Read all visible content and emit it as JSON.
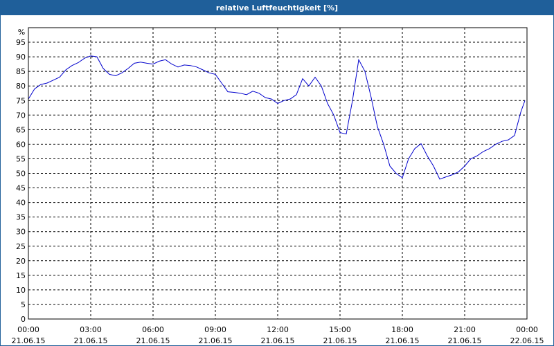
{
  "title": "relative Luftfeuchtigkeit [%]",
  "colors": {
    "title_bar": "#1f5f9a",
    "title_text": "#ffffff",
    "line": "#0000cc",
    "grid": "#000000",
    "background": "#ffffff"
  },
  "chart_data": {
    "type": "line",
    "title": "relative Luftfeuchtigkeit [%]",
    "ylabel": "%",
    "xlabel": "",
    "ylim": [
      0,
      100
    ],
    "xlim": [
      0,
      24
    ],
    "grid": true,
    "y_ticks": [
      0,
      5,
      10,
      15,
      20,
      25,
      30,
      35,
      40,
      45,
      50,
      55,
      60,
      65,
      70,
      75,
      80,
      85,
      90,
      95
    ],
    "x_ticks": [
      {
        "time": "00:00",
        "date": "21.06.15",
        "hour": 0
      },
      {
        "time": "03:00",
        "date": "21.06.15",
        "hour": 3
      },
      {
        "time": "06:00",
        "date": "21.06.15",
        "hour": 6
      },
      {
        "time": "09:00",
        "date": "21.06.15",
        "hour": 9
      },
      {
        "time": "12:00",
        "date": "21.06.15",
        "hour": 12
      },
      {
        "time": "15:00",
        "date": "21.06.15",
        "hour": 15
      },
      {
        "time": "18:00",
        "date": "21.06.15",
        "hour": 18
      },
      {
        "time": "21:00",
        "date": "21.06.15",
        "hour": 21
      },
      {
        "time": "00:00",
        "date": "22.06.15",
        "hour": 24
      }
    ],
    "series": [
      {
        "x": [
          0,
          0.3,
          0.6,
          0.9,
          1.2,
          1.5,
          1.8,
          2.1,
          2.4,
          2.7,
          3.0,
          3.3,
          3.6,
          3.9,
          4.2,
          4.5,
          4.8,
          5.1,
          5.4,
          5.7,
          6.0,
          6.3,
          6.6,
          6.9,
          7.2,
          7.5,
          7.8,
          8.1,
          8.4,
          8.7,
          9.0,
          9.3,
          9.6,
          9.9,
          10.2,
          10.5,
          10.8,
          11.1,
          11.4,
          11.7,
          12.0,
          12.3,
          12.6,
          12.9,
          13.2,
          13.5,
          13.8,
          14.1,
          14.4,
          14.7,
          15.0,
          15.3,
          15.6,
          15.9,
          16.2,
          16.5,
          16.8,
          17.1,
          17.4,
          17.7,
          18.0,
          18.3,
          18.6,
          18.9,
          19.2,
          19.5,
          19.8,
          20.1,
          20.4,
          20.7,
          21.0,
          21.3,
          21.6,
          21.9,
          22.2,
          22.5,
          22.8,
          23.1,
          23.4,
          23.7,
          23.9
        ],
        "values": [
          75.5,
          79,
          80.5,
          81,
          82,
          83,
          85.5,
          87,
          88,
          89.5,
          90.3,
          90,
          86,
          84,
          83.5,
          84.5,
          86,
          87.8,
          88.2,
          87.8,
          87.5,
          88.5,
          89,
          87.5,
          86.5,
          87.2,
          87,
          86.5,
          85.5,
          84.5,
          84,
          81,
          78,
          77.8,
          77.5,
          77,
          78.2,
          77.5,
          76,
          75.5,
          74,
          75,
          75.5,
          77,
          82.5,
          80,
          83,
          80,
          74,
          70,
          64,
          63.5,
          75,
          89,
          85,
          76,
          66,
          60,
          52.5,
          50,
          48.5,
          55,
          58.5,
          60.2,
          56,
          52.5,
          48,
          48.8,
          49.5,
          50.5,
          52.5,
          55,
          56,
          57.5,
          58.5,
          60,
          61,
          61.5,
          63,
          71,
          75
        ]
      }
    ]
  }
}
